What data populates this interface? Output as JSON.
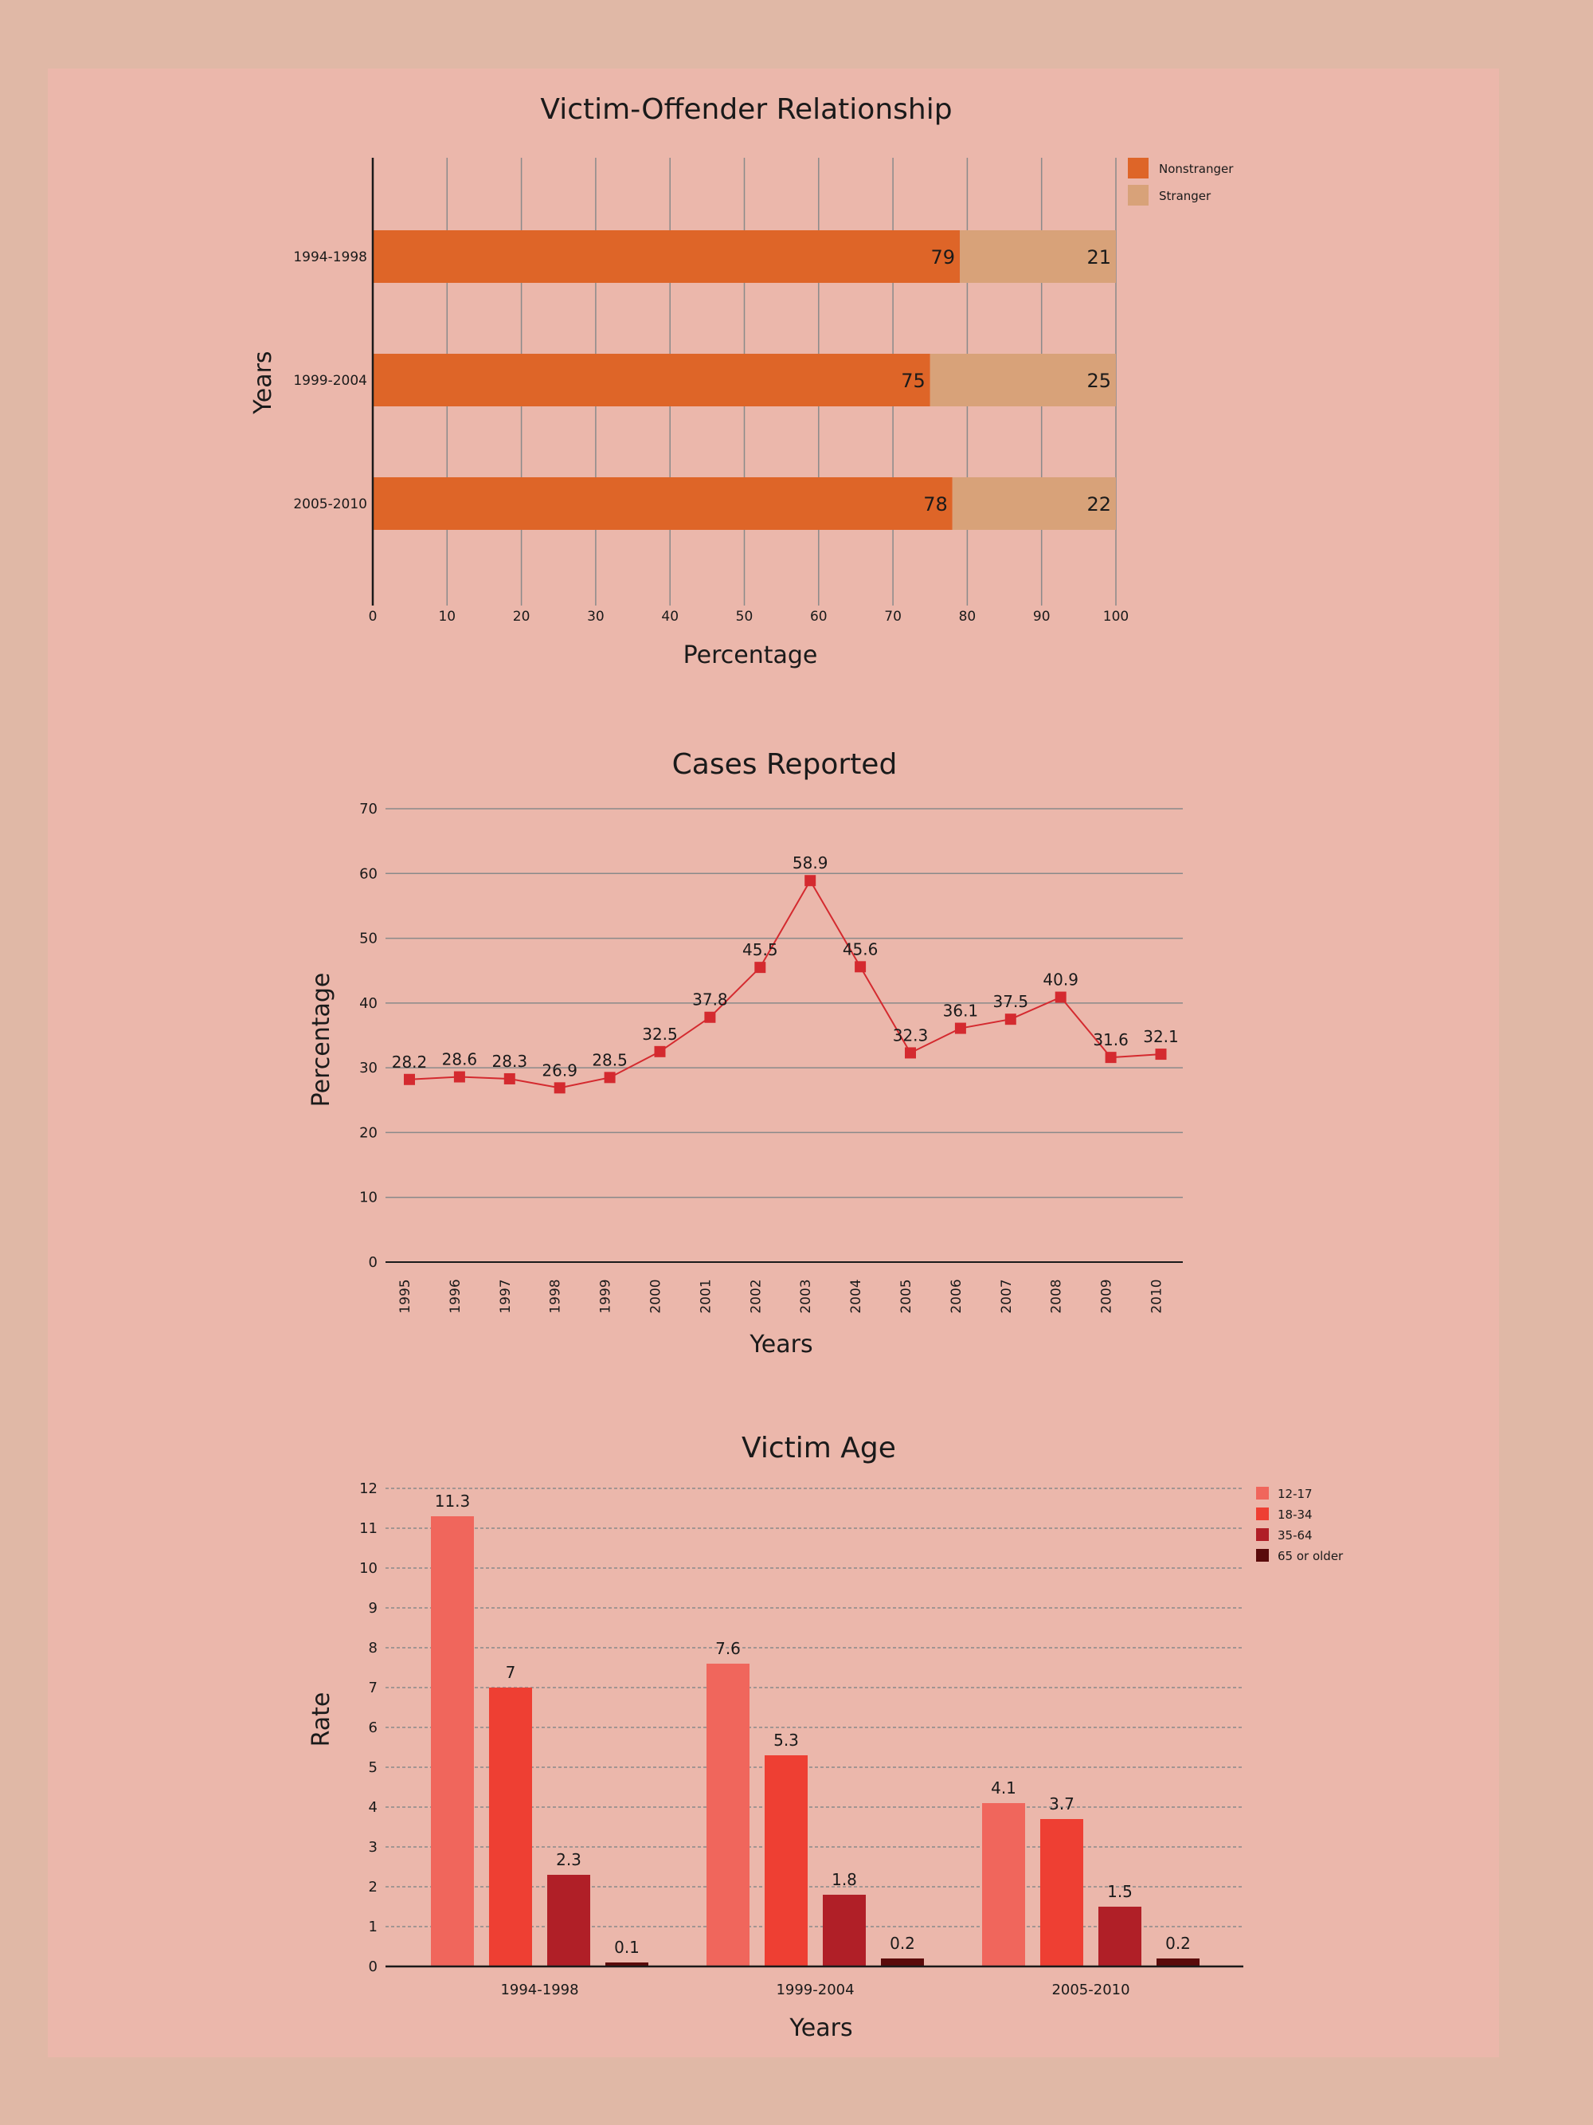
{
  "colors": {
    "page_background": "#e0b8a6",
    "panel_background": "#ebb7ab",
    "gridline": "#8a8a8a"
  },
  "chart_data": [
    {
      "type": "bar",
      "orientation": "horizontal",
      "stacked": true,
      "title": "Victim-Offender Relationship",
      "xlabel": "Percentage",
      "ylabel": "Years",
      "categories": [
        "1994-1998",
        "1999-2004",
        "2005-2010"
      ],
      "series": [
        {
          "name": "Nonstranger",
          "color": "#de6528",
          "values": [
            79,
            75,
            78
          ]
        },
        {
          "name": "Stranger",
          "color": "#d8a279",
          "values": [
            21,
            25,
            22
          ]
        }
      ],
      "xlim": [
        0,
        100
      ],
      "xticks": [
        0,
        10,
        20,
        30,
        40,
        50,
        60,
        70,
        80,
        90,
        100
      ],
      "grid": "vertical",
      "legend_position": "top-right"
    },
    {
      "type": "line",
      "title": "Cases Reported",
      "xlabel": "Years",
      "ylabel": "Percentage",
      "x": [
        "1995",
        "1996",
        "1997",
        "1998",
        "1999",
        "2000",
        "2001",
        "2002",
        "2003",
        "2004",
        "2005",
        "2006",
        "2007",
        "2008",
        "2009",
        "2010"
      ],
      "series": [
        {
          "color": "#d42a2f",
          "values": [
            28.2,
            28.6,
            28.3,
            26.9,
            28.5,
            32.5,
            37.8,
            45.5,
            58.9,
            45.6,
            32.3,
            36.1,
            37.5,
            40.9,
            31.6,
            32.1
          ]
        }
      ],
      "ylim": [
        0,
        70
      ],
      "yticks": [
        0,
        10,
        20,
        30,
        40,
        50,
        60,
        70
      ],
      "grid": "horizontal",
      "legend_position": "none"
    },
    {
      "type": "bar",
      "orientation": "vertical",
      "title": "Victim Age",
      "xlabel": "Years",
      "ylabel": "Rate",
      "categories": [
        "1994-1998",
        "1999-2004",
        "2005-2010"
      ],
      "series": [
        {
          "name": "12-17",
          "color": "#f0665c",
          "values": [
            11.3,
            7.6,
            4.1
          ]
        },
        {
          "name": "18-34",
          "color": "#ee3f33",
          "values": [
            7,
            5.3,
            3.7
          ]
        },
        {
          "name": "35-64",
          "color": "#b01f27",
          "values": [
            2.3,
            1.8,
            1.5
          ]
        },
        {
          "name": "65 or older",
          "color": "#5a0b0b",
          "values": [
            0.1,
            0.2,
            0.2
          ]
        }
      ],
      "ylim": [
        0,
        12
      ],
      "yticks": [
        0,
        1,
        2,
        3,
        4,
        5,
        6,
        7,
        8,
        9,
        10,
        11,
        12
      ],
      "grid": "horizontal dashed",
      "legend_position": "top-right"
    }
  ]
}
